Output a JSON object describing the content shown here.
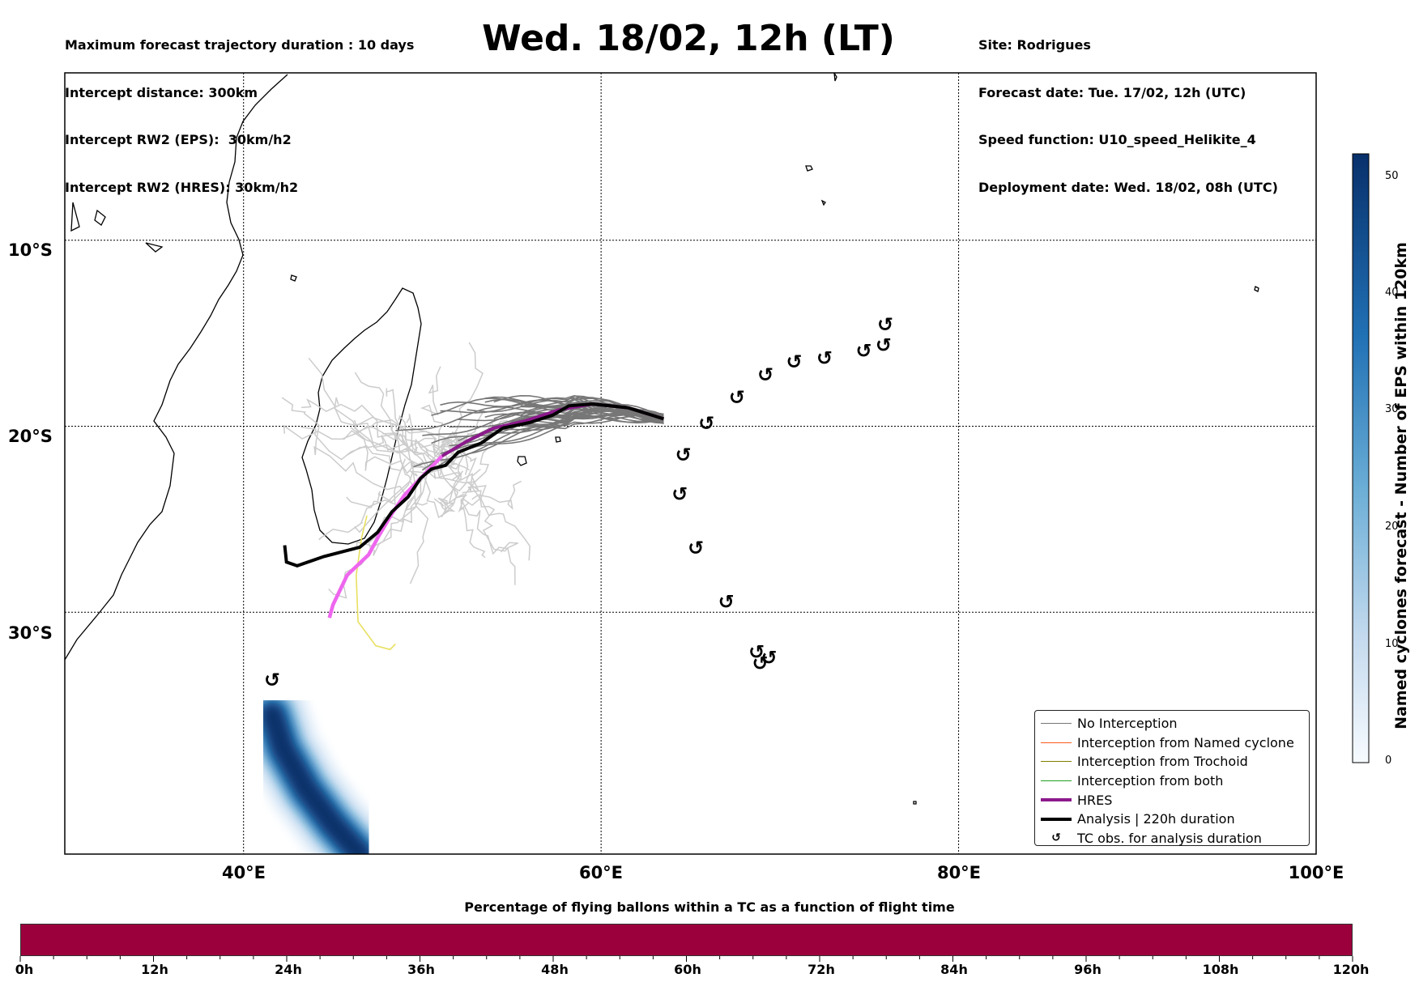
{
  "header_left": [
    "Maximum forecast trajectory duration : 10 days",
    "Intercept distance: 300km",
    "Intercept RW2 (EPS):  30km/h2",
    "Intercept RW2 (HRES): 30km/h2"
  ],
  "title": "Wed. 18/02, 12h (LT)",
  "header_right": [
    "Site: Rodrigues",
    "Forecast date: Tue. 17/02, 12h (UTC)",
    "Speed function: U10_speed_Helikite_4",
    "Deployment date: Wed. 18/02, 08h (UTC)"
  ],
  "map": {
    "lon_range": [
      30,
      100
    ],
    "lat_range": [
      -43,
      -1
    ],
    "lat_labels": [
      "10°S",
      "20°S",
      "30°S"
    ],
    "lon_labels": [
      "40°E",
      "60°E",
      "80°E",
      "100°E"
    ],
    "grid": true,
    "colors": {
      "no_interception": "#777777",
      "named_cyclone": "#ff5a1e",
      "trochoid": "#808000",
      "both": "#20a020",
      "hres": "#8c1a8c",
      "analysis": "#000000",
      "eps_light": "#cccccc",
      "hres_light": "#ee66ee",
      "yellow_track": "#e8e060",
      "density_dark": "#08306b"
    },
    "tc_obs": [
      [
        75.9,
        -14.5
      ],
      [
        75.8,
        -15.6
      ],
      [
        74.7,
        -15.9
      ],
      [
        72.5,
        -16.3
      ],
      [
        70.8,
        -16.5
      ],
      [
        69.2,
        -17.2
      ],
      [
        67.6,
        -18.4
      ],
      [
        65.9,
        -19.8
      ],
      [
        64.6,
        -21.5
      ],
      [
        64.4,
        -23.6
      ],
      [
        65.3,
        -26.5
      ],
      [
        67.0,
        -29.4
      ],
      [
        68.7,
        -32.1
      ],
      [
        69.4,
        -32.4
      ],
      [
        68.9,
        -32.7
      ],
      [
        41.6,
        -33.6
      ]
    ],
    "analysis_track": [
      [
        42.3,
        -26.4
      ],
      [
        42.4,
        -27.3
      ],
      [
        43.0,
        -27.5
      ],
      [
        44.5,
        -27.0
      ],
      [
        46.5,
        -26.5
      ],
      [
        47.5,
        -25.7
      ],
      [
        48.3,
        -24.6
      ],
      [
        49.2,
        -23.8
      ],
      [
        49.9,
        -22.8
      ],
      [
        50.5,
        -22.3
      ],
      [
        51.3,
        -22.1
      ],
      [
        52.0,
        -21.4
      ],
      [
        53.3,
        -20.9
      ],
      [
        54.5,
        -20.1
      ],
      [
        56.0,
        -19.8
      ],
      [
        57.3,
        -19.4
      ],
      [
        58.2,
        -18.9
      ],
      [
        59.5,
        -18.8
      ],
      [
        61.5,
        -19.0
      ],
      [
        63.5,
        -19.6
      ]
    ],
    "hres_track": [
      [
        44.8,
        -30.3
      ],
      [
        45.0,
        -29.6
      ],
      [
        45.8,
        -28.0
      ],
      [
        47.0,
        -26.9
      ],
      [
        47.5,
        -26.0
      ],
      [
        48.3,
        -24.7
      ],
      [
        49.0,
        -23.7
      ],
      [
        49.6,
        -23.1
      ],
      [
        50.3,
        -22.4
      ],
      [
        51.1,
        -21.6
      ],
      [
        52.5,
        -20.8
      ],
      [
        54.0,
        -20.1
      ],
      [
        55.8,
        -19.7
      ],
      [
        57.7,
        -19.1
      ],
      [
        59.5,
        -18.8
      ],
      [
        61.5,
        -19.0
      ],
      [
        63.5,
        -19.6
      ]
    ],
    "yellow_track": [
      [
        46.9,
        -24.8
      ],
      [
        46.6,
        -26.0
      ],
      [
        46.3,
        -28.0
      ],
      [
        46.4,
        -30.5
      ],
      [
        47.4,
        -31.8
      ],
      [
        48.2,
        -32.0
      ],
      [
        48.5,
        -31.7
      ]
    ],
    "density_centerline": [
      [
        41.6,
        -35.5
      ],
      [
        42.2,
        -37.3
      ],
      [
        43.5,
        -39.5
      ],
      [
        45.0,
        -41.4
      ],
      [
        46.5,
        -43.0
      ]
    ]
  },
  "legend": [
    {
      "label": "No Interception",
      "color": "#777777",
      "kind": "thin"
    },
    {
      "label": "Interception from Named cyclone",
      "color": "#ff5a1e",
      "kind": "thin"
    },
    {
      "label": "Interception from Trochoid",
      "color": "#808000",
      "kind": "thin"
    },
    {
      "label": "Interception from both",
      "color": "#20a020",
      "kind": "thin"
    },
    {
      "label": "HRES",
      "color": "#8c1a8c",
      "kind": "thick"
    },
    {
      "label": "Analysis | 220h duration",
      "color": "#000000",
      "kind": "thick"
    },
    {
      "label": "TC obs. for analysis duration",
      "color": "#000000",
      "kind": "symbol",
      "symbol": "↺"
    }
  ],
  "colorbar_right": {
    "title": "Named cyclones forecast - Number of EPS within 120km",
    "ticks": [
      "0",
      "10",
      "20",
      "30",
      "40",
      "50"
    ],
    "range": [
      0,
      52
    ]
  },
  "colorbar_bottom": {
    "title": "Percentage of flying ballons within a TC as a function of flight time",
    "ticks": [
      "0h",
      "12h",
      "24h",
      "36h",
      "48h",
      "60h",
      "72h",
      "84h",
      "96h",
      "108h",
      "120h"
    ],
    "fill_color": "#9c003c"
  }
}
